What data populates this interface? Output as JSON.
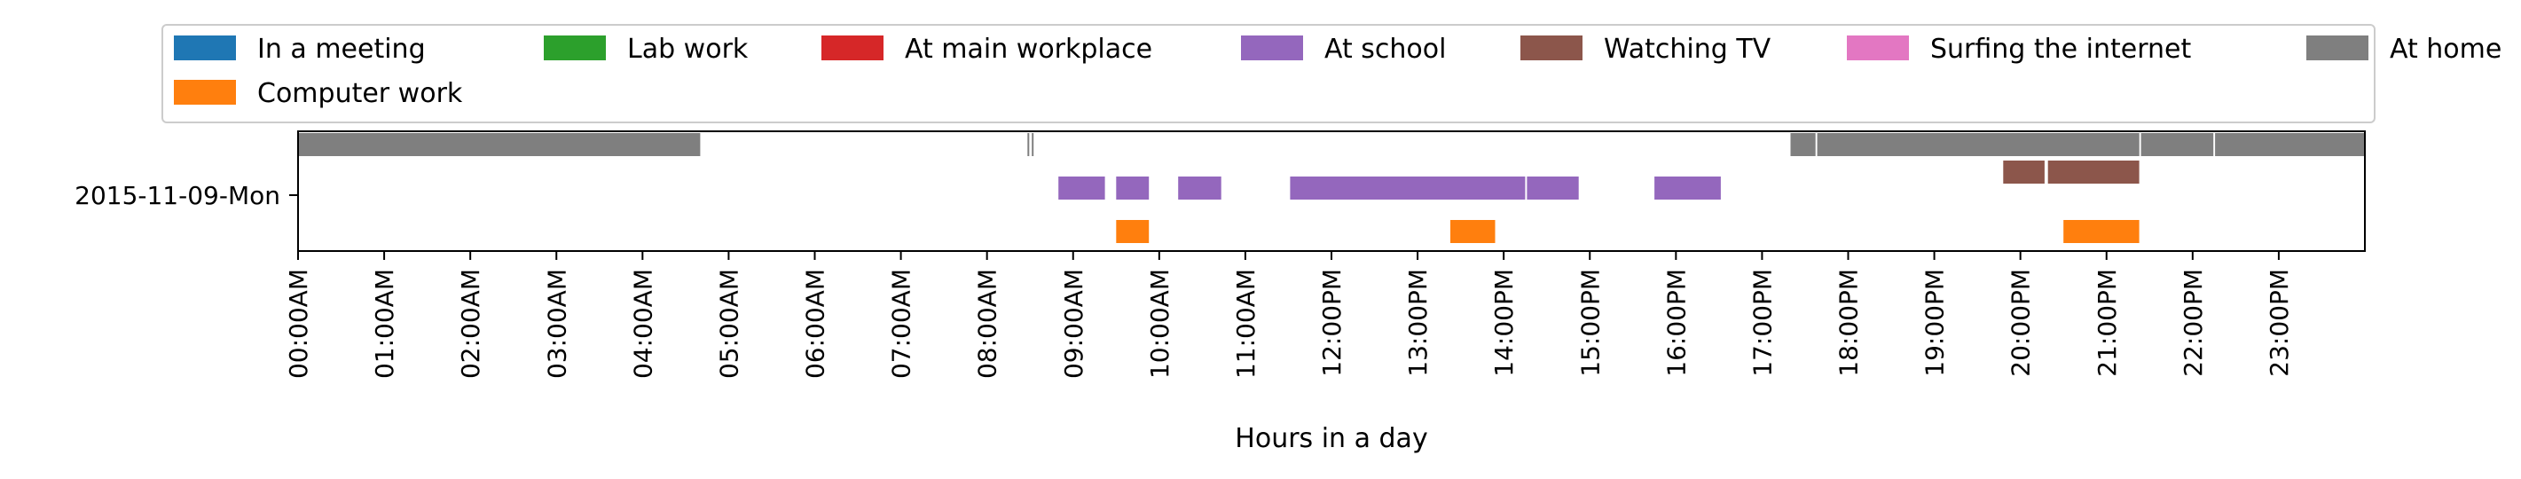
{
  "chart_data": {
    "type": "timeline",
    "xlabel": "Hours in a day",
    "ylabel": "",
    "xlim": [
      0,
      24
    ],
    "y_categories": [
      "2015-11-09-Mon"
    ],
    "x_ticks": [
      "00:00AM",
      "01:00AM",
      "02:00AM",
      "03:00AM",
      "04:00AM",
      "05:00AM",
      "06:00AM",
      "07:00AM",
      "08:00AM",
      "09:00AM",
      "10:00AM",
      "11:00AM",
      "12:00PM",
      "13:00PM",
      "14:00PM",
      "15:00PM",
      "16:00PM",
      "17:00PM",
      "18:00PM",
      "19:00PM",
      "20:00PM",
      "21:00PM",
      "22:00PM",
      "23:00PM"
    ],
    "legend": {
      "placement": "top",
      "entries": [
        {
          "name": "In a meeting",
          "color": "#1f77b4"
        },
        {
          "name": "Lab work",
          "color": "#2ca02c"
        },
        {
          "name": "At main workplace",
          "color": "#d62728"
        },
        {
          "name": "At school",
          "color": "#9467bd"
        },
        {
          "name": "Watching TV",
          "color": "#8c564b"
        },
        {
          "name": "Surfing the internet",
          "color": "#e377c2"
        },
        {
          "name": "At home",
          "color": "#7f7f7f"
        },
        {
          "name": "Computer work",
          "color": "#ff7f0e"
        }
      ]
    },
    "series": [
      {
        "name": "At home",
        "color": "#7f7f7f",
        "lane": 0,
        "intervals": [
          [
            0.0,
            4.67
          ],
          [
            8.47,
            8.49
          ],
          [
            8.52,
            8.54
          ],
          [
            17.33,
            17.62
          ],
          [
            17.64,
            21.38
          ],
          [
            21.4,
            22.24
          ],
          [
            22.26,
            24.0
          ]
        ]
      },
      {
        "name": "Watching TV",
        "color": "#8c564b",
        "lane": 1,
        "intervals": [
          [
            19.8,
            20.28
          ],
          [
            20.32,
            21.38
          ]
        ]
      },
      {
        "name": "At school",
        "color": "#9467bd",
        "lane": 2,
        "intervals": [
          [
            8.83,
            9.37
          ],
          [
            9.5,
            9.88
          ],
          [
            10.22,
            10.72
          ],
          [
            11.52,
            14.25
          ],
          [
            14.27,
            14.87
          ],
          [
            15.75,
            16.52
          ]
        ]
      },
      {
        "name": "Computer work",
        "color": "#ff7f0e",
        "lane": 3,
        "intervals": [
          [
            9.5,
            9.88
          ],
          [
            13.38,
            13.9
          ],
          [
            20.5,
            21.38
          ]
        ]
      }
    ]
  }
}
